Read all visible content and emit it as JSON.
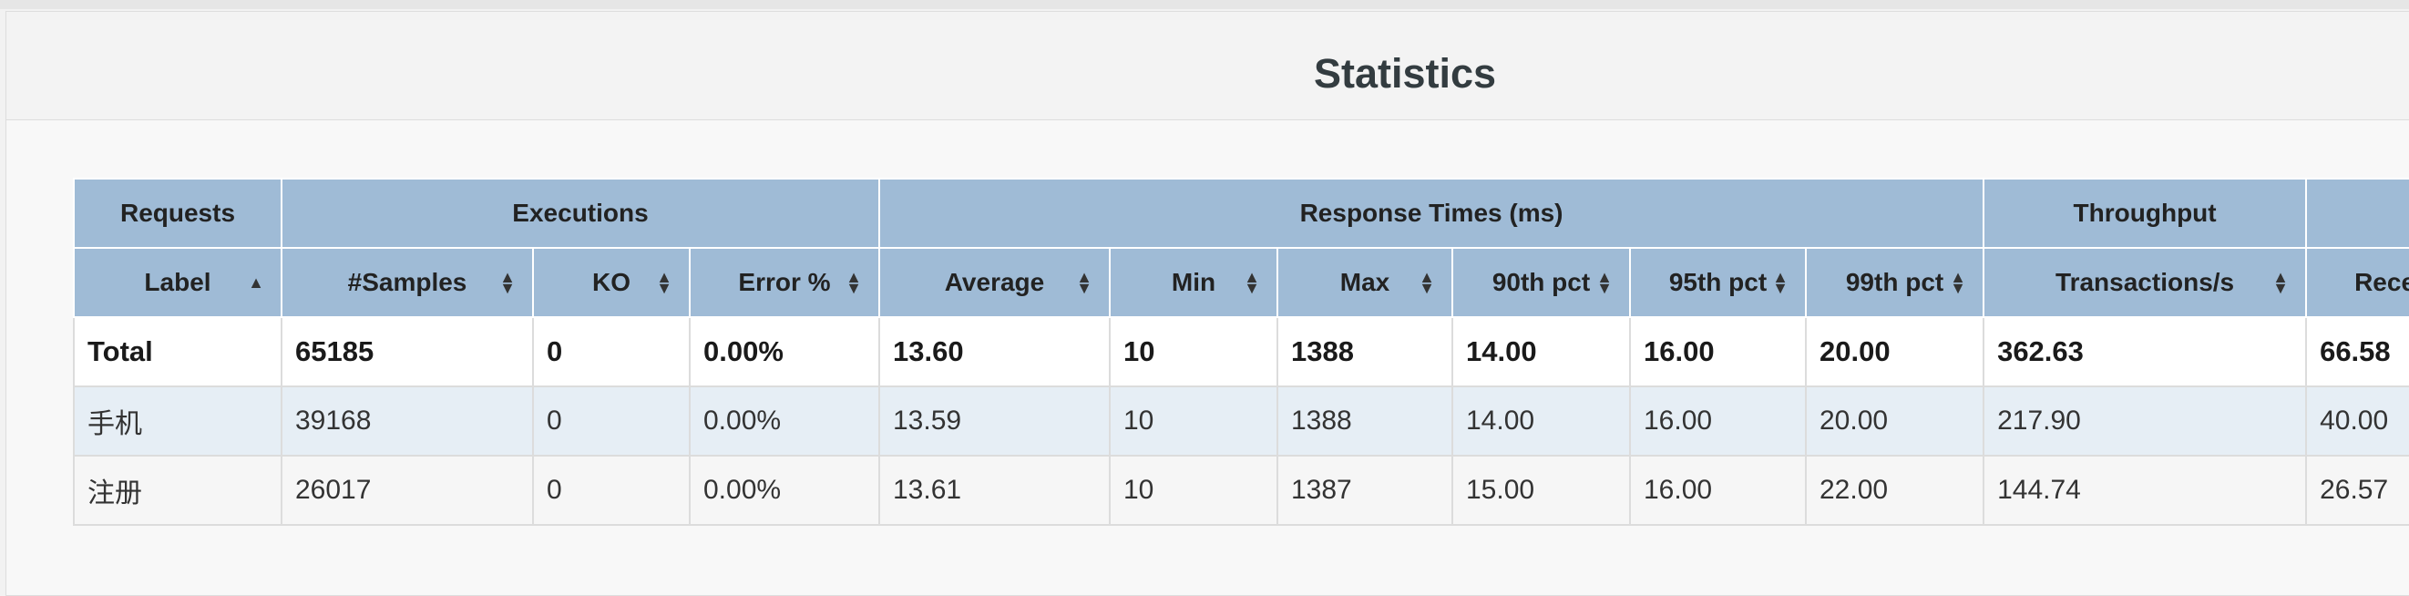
{
  "panel": {
    "title": "Statistics"
  },
  "table": {
    "groups": [
      {
        "label": "Requests"
      },
      {
        "label": "Executions"
      },
      {
        "label": "Response Times (ms)"
      },
      {
        "label": "Throughput"
      },
      {
        "label": ""
      }
    ],
    "columns": [
      {
        "label": "Label",
        "sort": "asc"
      },
      {
        "label": "#Samples",
        "sort": "both"
      },
      {
        "label": "KO",
        "sort": "both"
      },
      {
        "label": "Error %",
        "sort": "both"
      },
      {
        "label": "Average",
        "sort": "both"
      },
      {
        "label": "Min",
        "sort": "both"
      },
      {
        "label": "Max",
        "sort": "both"
      },
      {
        "label": "90th pct",
        "sort": "both"
      },
      {
        "label": "95th pct",
        "sort": "both"
      },
      {
        "label": "99th pct",
        "sort": "both"
      },
      {
        "label": "Transactions/s",
        "sort": "both"
      },
      {
        "label": "Rece",
        "sort": "none"
      }
    ],
    "total": [
      "Total",
      "65185",
      "0",
      "0.00%",
      "13.60",
      "10",
      "1388",
      "14.00",
      "16.00",
      "20.00",
      "362.63",
      "66.58"
    ],
    "rows": [
      [
        "手机",
        "39168",
        "0",
        "0.00%",
        "13.59",
        "10",
        "1388",
        "14.00",
        "16.00",
        "20.00",
        "217.90",
        "40.00"
      ],
      [
        "注册",
        "26017",
        "0",
        "0.00%",
        "13.61",
        "10",
        "1387",
        "15.00",
        "16.00",
        "22.00",
        "144.74",
        "26.57"
      ]
    ]
  }
}
